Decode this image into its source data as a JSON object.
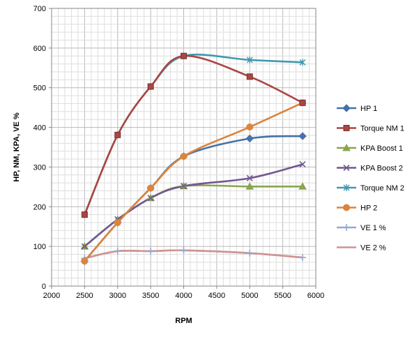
{
  "chart_data": {
    "type": "line",
    "xlabel": "RPM",
    "ylabel": "HP, NM, KPA, VE %",
    "xlim": [
      2000,
      6000
    ],
    "ylim": [
      0,
      700
    ],
    "xticks": [
      2000,
      2500,
      3000,
      3500,
      4000,
      4500,
      5000,
      5500,
      6000
    ],
    "yticks": [
      0,
      100,
      200,
      300,
      400,
      500,
      600,
      700
    ],
    "grid": true,
    "legend_position": "right",
    "series": [
      {
        "name": "HP 1",
        "color": "#4572A7",
        "marker": "diamond",
        "x": [
          2500,
          3000,
          3500,
          4000,
          5000,
          5800
        ],
        "y": [
          63,
          160,
          247,
          327,
          372,
          378
        ]
      },
      {
        "name": "Torque NM 1",
        "color": "#AA4643",
        "marker": "square",
        "x": [
          2500,
          3000,
          3500,
          4000,
          5000,
          5800
        ],
        "y": [
          180,
          381,
          503,
          580,
          528,
          462
        ]
      },
      {
        "name": "KPA Boost 1",
        "color": "#89A54E",
        "marker": "triangle",
        "x": [
          2500,
          3000,
          3500,
          4000,
          5000,
          5800
        ],
        "y": [
          100,
          168,
          222,
          252,
          251,
          251
        ]
      },
      {
        "name": "KPA Boost 2",
        "color": "#71588F",
        "marker": "x",
        "x": [
          2500,
          3000,
          3500,
          4000,
          5000,
          5800
        ],
        "y": [
          100,
          168,
          222,
          252,
          272,
          307
        ]
      },
      {
        "name": "Torque NM 2",
        "color": "#4198AF",
        "marker": "star",
        "x": [
          2500,
          3000,
          3500,
          4000,
          5000,
          5800
        ],
        "y": [
          180,
          381,
          503,
          580,
          570,
          564
        ]
      },
      {
        "name": "HP 2",
        "color": "#DB843D",
        "marker": "circle",
        "x": [
          2500,
          3000,
          3500,
          4000,
          5000,
          5800
        ],
        "y": [
          63,
          160,
          247,
          327,
          401,
          462
        ]
      },
      {
        "name": "VE 1 %",
        "color": "#93A9CF",
        "marker": "plus",
        "x": [
          2500,
          3000,
          3500,
          4000,
          5000,
          5800
        ],
        "y": [
          70,
          88,
          88,
          90,
          83,
          72
        ]
      },
      {
        "name": "VE 2 %",
        "color": "#D19392",
        "marker": "none",
        "x": [
          2500,
          3000,
          3500,
          4000,
          5000,
          5800
        ],
        "y": [
          70,
          88,
          88,
          90,
          83,
          72
        ]
      }
    ]
  }
}
